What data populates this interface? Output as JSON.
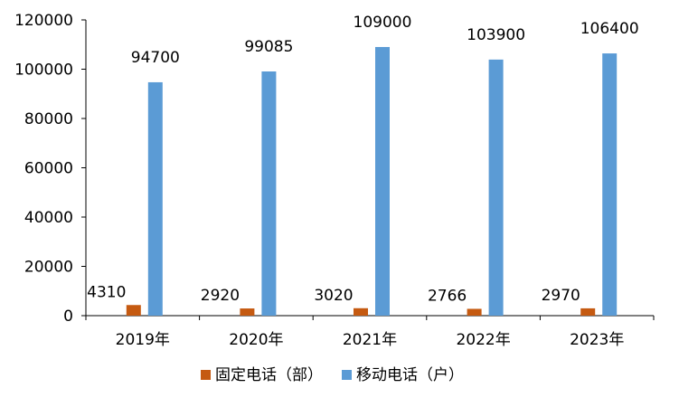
{
  "chart_data": {
    "type": "bar",
    "categories": [
      "2019年",
      "2020年",
      "2021年",
      "2022年",
      "2023年"
    ],
    "series": [
      {
        "name": "固定电话（部）",
        "color": "#C55A11",
        "values": [
          4310,
          2920,
          3020,
          2766,
          2970
        ]
      },
      {
        "name": "移动电话（户）",
        "color": "#5B9BD5",
        "values": [
          94700,
          99085,
          109000,
          103900,
          106400
        ]
      }
    ],
    "ylim": [
      0,
      120000
    ],
    "yticks": [
      0,
      20000,
      40000,
      60000,
      80000,
      100000,
      120000
    ],
    "grid": false,
    "legend": "bottom",
    "title": "",
    "xlabel": "",
    "ylabel": ""
  }
}
